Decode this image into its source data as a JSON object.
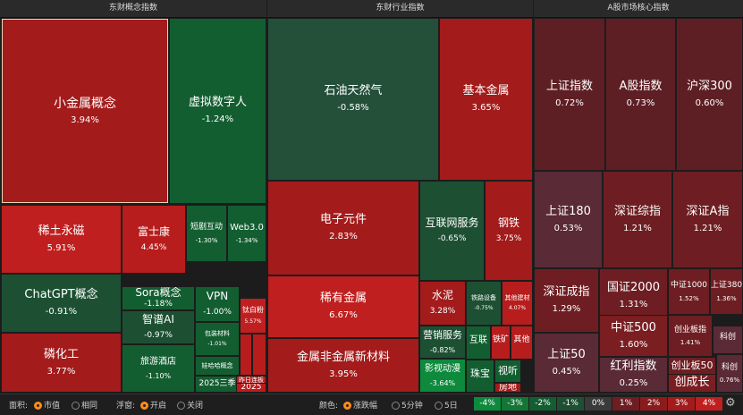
{
  "panels": {
    "concept_title": "东财概念指数",
    "industry_title": "东财行业指数",
    "market_title": "A股市场核心指数"
  },
  "concept_tiles": [
    {
      "name": "小金属概念",
      "value": "3.94%",
      "color": "#a31b1b"
    },
    {
      "name": "虚拟数字人",
      "value": "-1.24%",
      "color": "#135e31"
    },
    {
      "name": "稀土永磁",
      "value": "5.91%",
      "color": "#c01f1f"
    },
    {
      "name": "富士康",
      "value": "4.45%",
      "color": "#b81d1d"
    },
    {
      "name": "短剧互动",
      "value": "-1.30%",
      "color": "#135e31"
    },
    {
      "name": "Web3.0",
      "value": "-1.34%",
      "color": "#135e31"
    },
    {
      "name": "ChatGPT概念",
      "value": "-0.91%",
      "color": "#1d5033"
    },
    {
      "name": "Sora概念",
      "value": "-1.18%",
      "color": "#135e31"
    },
    {
      "name": "VPN",
      "value": "-1.00%",
      "color": "#135e31"
    },
    {
      "name": "钛白粉",
      "value": "5.57%",
      "color": "#c01f1f"
    },
    {
      "name": "智谱AI",
      "value": "-0.97%",
      "color": "#1d5033"
    },
    {
      "name": "包装材料",
      "value": "-1.01%",
      "color": "#135e31"
    },
    {
      "name": "磷化工",
      "value": "3.77%",
      "color": "#a31b1b"
    },
    {
      "name": "旅游酒店",
      "value": "-1.10%",
      "color": "#135e31"
    },
    {
      "name": "娃哈哈概念",
      "value": "",
      "color": "#135e31"
    },
    {
      "name": "2025三季",
      "value": "",
      "color": "#135e31"
    },
    {
      "name": "",
      "value": "",
      "color": "#b81d1d"
    },
    {
      "name": "",
      "value": "",
      "color": "#b81d1d"
    },
    {
      "name": "昨日连板",
      "value": "",
      "color": "#b81d1d"
    },
    {
      "name": "2025",
      "value": "",
      "color": "#b81d1d"
    }
  ],
  "industry_tiles": [
    {
      "name": "石油天然气",
      "value": "-0.58%",
      "color": "#24503a"
    },
    {
      "name": "基本金属",
      "value": "3.65%",
      "color": "#a31b1b"
    },
    {
      "name": "电子元件",
      "value": "2.83%",
      "color": "#a31b1b"
    },
    {
      "name": "互联网服务",
      "value": "-0.65%",
      "color": "#1d5033"
    },
    {
      "name": "钢铁",
      "value": "3.75%",
      "color": "#a31b1b"
    },
    {
      "name": "稀有金属",
      "value": "6.67%",
      "color": "#c01f1f"
    },
    {
      "name": "水泥",
      "value": "3.28%",
      "color": "#a31b1b"
    },
    {
      "name": "铁路设备",
      "value": "-0.75%",
      "color": "#1d5033"
    },
    {
      "name": "其他建材",
      "value": "4.07%",
      "color": "#b81d1d"
    },
    {
      "name": "金属非金属新材料",
      "value": "3.95%",
      "color": "#a31b1b"
    },
    {
      "name": "营销服务",
      "value": "-0.82%",
      "color": "#1d5033"
    },
    {
      "name": "互联",
      "value": "",
      "color": "#135e31"
    },
    {
      "name": "铁矿",
      "value": "",
      "color": "#b81d1d"
    },
    {
      "name": "其他",
      "value": "",
      "color": "#b81d1d"
    },
    {
      "name": "影视动漫",
      "value": "-3.64%",
      "color": "#0d8a3c"
    },
    {
      "name": "珠宝",
      "value": "",
      "color": "#135e31"
    },
    {
      "name": "视听",
      "value": "",
      "color": "#135e31"
    },
    {
      "name": "房地",
      "value": "",
      "color": "#a31b1b"
    }
  ],
  "market_tiles": [
    {
      "name": "上证指数",
      "value": "0.72%",
      "color": "#5e1f24"
    },
    {
      "name": "A股指数",
      "value": "0.73%",
      "color": "#5e1f24"
    },
    {
      "name": "沪深300",
      "value": "0.60%",
      "color": "#5e1f24"
    },
    {
      "name": "上证180",
      "value": "0.53%",
      "color": "#5a2a36"
    },
    {
      "name": "深证综指",
      "value": "1.21%",
      "color": "#6e1e22"
    },
    {
      "name": "深证A指",
      "value": "1.21%",
      "color": "#6e1e22"
    },
    {
      "name": "深证成指",
      "value": "1.29%",
      "color": "#6e1e22"
    },
    {
      "name": "国证2000",
      "value": "1.31%",
      "color": "#6e1e22"
    },
    {
      "name": "中证1000",
      "value": "1.52%",
      "color": "#6e1e22"
    },
    {
      "name": "上证380",
      "value": "1.36%",
      "color": "#6e1e22"
    },
    {
      "name": "中证500",
      "value": "1.60%",
      "color": "#7a1e22"
    },
    {
      "name": "创业板指",
      "value": "1.41%",
      "color": "#6e1e22"
    },
    {
      "name": "科创",
      "value": "",
      "color": "#5a2a36"
    },
    {
      "name": "上证50",
      "value": "0.45%",
      "color": "#5a2a36"
    },
    {
      "name": "红利指数",
      "value": "0.25%",
      "color": "#5a2a36"
    },
    {
      "name": "创业板50",
      "value": "",
      "color": "#6e1e22"
    },
    {
      "name": "科创",
      "value": "0.76%",
      "color": "#5a2a36"
    },
    {
      "name": "创成长",
      "value": "",
      "color": "#7a1e22"
    }
  ],
  "bottom": {
    "area_label": "面积:",
    "area_opt1": "市值",
    "area_opt2": "相同",
    "float_label": "浮窗:",
    "float_opt1": "开启",
    "float_opt2": "关闭",
    "color_label": "颜色:",
    "color_opt1": "涨跌幅",
    "color_opt2": "5分钟",
    "color_opt3": "5日",
    "legend": [
      {
        "label": "-4%",
        "color": "#0d8a3c"
      },
      {
        "label": "-3%",
        "color": "#137636"
      },
      {
        "label": "-2%",
        "color": "#135e31"
      },
      {
        "label": "-1%",
        "color": "#1d5033"
      },
      {
        "label": "0%",
        "color": "#3a3a3a"
      },
      {
        "label": "1%",
        "color": "#6e1e22"
      },
      {
        "label": "2%",
        "color": "#8a1c1c"
      },
      {
        "label": "3%",
        "color": "#a31b1b"
      },
      {
        "label": "4%",
        "color": "#c01f1f"
      }
    ]
  }
}
